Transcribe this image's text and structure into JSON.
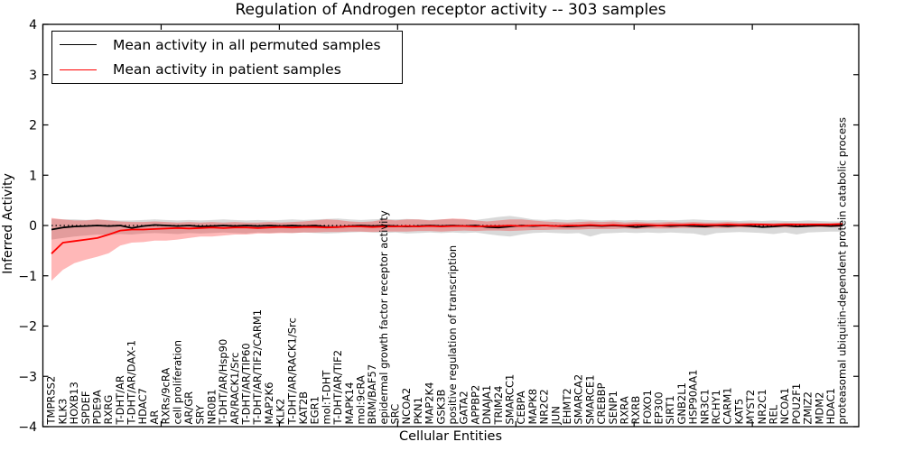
{
  "chart_data": {
    "type": "line",
    "title": "Regulation of Androgen receptor activity -- 303 samples",
    "xlabel": "Cellular Entities",
    "ylabel": "Inferred Activity",
    "ylim": [
      -4,
      4
    ],
    "xlim": [
      0,
      69
    ],
    "y_ticks": [
      "4",
      "3",
      "2",
      "1",
      "0",
      "−1",
      "−2",
      "−3",
      "−4"
    ],
    "x_major_tick_interval": 10,
    "grid": false,
    "legend_position": "upper left",
    "reference_line": {
      "y": 0,
      "style": "dotted",
      "color": "#000000"
    },
    "categories": [
      "TMPRSS2",
      "KLK3",
      "HOXB13",
      "SPDEF",
      "PDE9A",
      "RXRG",
      "T-DHT/AR",
      "T-DHT/AR/DAX-1",
      "HDAC7",
      "AR",
      "RXRs/9cRA",
      "cell proliferation",
      "AR/GR",
      "SRY",
      "NR0B1",
      "T-DHT/AR/Hsp90",
      "AR/RACK1/Src",
      "T-DHT/AR/TIP60",
      "T-DHT/AR/TIF2/CARM1",
      "MAP2K6",
      "KLK2",
      "T-DHT/AR/RACK1/Src",
      "KAT2B",
      "EGR1",
      "mol:T-DHT",
      "T-DHT/AR/TIF2",
      "MAPK14",
      "mol:9cRA",
      "BRM/BAF57",
      "epidermal growth factor receptor activity",
      "SRC",
      "NCOA2",
      "PKN1",
      "MAP2K4",
      "GSK3B",
      "positive regulation of transcription",
      "GATA2",
      "APPBP2",
      "DNAJA1",
      "TRIM24",
      "SMARCC1",
      "CEBPA",
      "MAPK8",
      "NR2C2",
      "JUN",
      "EHMT2",
      "SMARCA2",
      "SMARCE1",
      "CREBBP",
      "SENP1",
      "RXRA",
      "RXRB",
      "FOXO1",
      "EP300",
      "SIRT1",
      "GNB2L1",
      "HSP90AA1",
      "NR3C1",
      "RCHY1",
      "CARM1",
      "KAT5",
      "MYST2",
      "NR2C1",
      "REL",
      "NCOA1",
      "POU2F1",
      "ZMIZ2",
      "MDM2",
      "HDAC1",
      "proteasomal ubiquitin-dependent protein catabolic process"
    ],
    "series": [
      {
        "name": "Mean activity in all permuted samples",
        "color": "#000000",
        "band_color": "#000000",
        "band_alpha": 0.15,
        "values": [
          -0.08,
          -0.04,
          -0.02,
          -0.01,
          0.0,
          -0.01,
          0.0,
          -0.05,
          -0.01,
          0.01,
          0.0,
          -0.01,
          0.0,
          -0.02,
          -0.01,
          0.0,
          -0.01,
          0.0,
          -0.01,
          0.0,
          -0.01,
          0.0,
          -0.01,
          0.0,
          -0.03,
          -0.03,
          -0.01,
          0.0,
          -0.01,
          0.0,
          -0.01,
          -0.02,
          -0.01,
          0.0,
          -0.01,
          0.0,
          -0.01,
          0.0,
          -0.03,
          -0.04,
          -0.02,
          0.0,
          -0.01,
          0.0,
          -0.01,
          -0.02,
          -0.01,
          0.0,
          -0.01,
          0.0,
          -0.01,
          -0.03,
          -0.01,
          0.0,
          -0.01,
          0.0,
          -0.01,
          -0.02,
          0.0,
          -0.01,
          0.0,
          -0.01,
          -0.03,
          -0.02,
          0.0,
          -0.02,
          -0.01,
          0.0,
          -0.01,
          0.0
        ],
        "band_upper": [
          0.13,
          0.12,
          0.12,
          0.11,
          0.12,
          0.11,
          0.1,
          0.1,
          0.11,
          0.12,
          0.11,
          0.1,
          0.11,
          0.1,
          0.11,
          0.12,
          0.11,
          0.1,
          0.11,
          0.1,
          0.11,
          0.12,
          0.11,
          0.12,
          0.13,
          0.14,
          0.12,
          0.11,
          0.12,
          0.13,
          0.12,
          0.13,
          0.12,
          0.11,
          0.12,
          0.13,
          0.12,
          0.11,
          0.14,
          0.17,
          0.19,
          0.16,
          0.12,
          0.11,
          0.12,
          0.11,
          0.12,
          0.11,
          0.1,
          0.11,
          0.1,
          0.11,
          0.1,
          0.11,
          0.1,
          0.11,
          0.12,
          0.11,
          0.1,
          0.1,
          0.09,
          0.1,
          0.09,
          0.1,
          0.09,
          0.09,
          0.1,
          0.09,
          0.08,
          0.08
        ],
        "band_lower": [
          -0.28,
          -0.25,
          -0.22,
          -0.2,
          -0.18,
          -0.19,
          -0.17,
          -0.18,
          -0.16,
          -0.15,
          -0.16,
          -0.17,
          -0.15,
          -0.16,
          -0.15,
          -0.14,
          -0.15,
          -0.16,
          -0.14,
          -0.15,
          -0.14,
          -0.15,
          -0.14,
          -0.15,
          -0.16,
          -0.15,
          -0.14,
          -0.13,
          -0.14,
          -0.15,
          -0.14,
          -0.16,
          -0.15,
          -0.14,
          -0.15,
          -0.14,
          -0.15,
          -0.14,
          -0.17,
          -0.2,
          -0.22,
          -0.18,
          -0.15,
          -0.14,
          -0.15,
          -0.16,
          -0.15,
          -0.22,
          -0.16,
          -0.15,
          -0.14,
          -0.15,
          -0.14,
          -0.15,
          -0.14,
          -0.15,
          -0.16,
          -0.2,
          -0.15,
          -0.14,
          -0.13,
          -0.14,
          -0.15,
          -0.17,
          -0.14,
          -0.18,
          -0.14,
          -0.13,
          -0.12,
          -0.12
        ]
      },
      {
        "name": "Mean activity in patient samples",
        "color": "#ff0000",
        "band_color": "#ff0000",
        "band_alpha": 0.28,
        "values": [
          -0.56,
          -0.34,
          -0.31,
          -0.28,
          -0.25,
          -0.18,
          -0.1,
          -0.08,
          -0.08,
          -0.07,
          -0.06,
          -0.05,
          -0.06,
          -0.05,
          -0.04,
          -0.05,
          -0.04,
          -0.04,
          -0.05,
          -0.04,
          -0.03,
          -0.04,
          -0.03,
          -0.03,
          -0.04,
          -0.03,
          -0.02,
          -0.02,
          -0.03,
          -0.02,
          -0.02,
          -0.01,
          -0.02,
          -0.01,
          -0.02,
          -0.01,
          -0.01,
          -0.02,
          -0.01,
          -0.01,
          0.0,
          -0.01,
          0.0,
          0.0,
          -0.01,
          0.0,
          0.0,
          0.01,
          0.0,
          0.01,
          0.0,
          0.01,
          0.01,
          0.0,
          0.01,
          0.01,
          0.02,
          0.01,
          0.01,
          0.02,
          0.01,
          0.02,
          0.02,
          0.01,
          0.02,
          0.02,
          0.02,
          0.02,
          0.02,
          0.03
        ],
        "band_upper": [
          0.15,
          0.12,
          0.1,
          0.1,
          0.12,
          0.1,
          0.08,
          0.07,
          0.07,
          0.08,
          0.07,
          0.06,
          0.07,
          0.06,
          0.07,
          0.06,
          0.07,
          0.06,
          0.06,
          0.07,
          0.06,
          0.07,
          0.08,
          0.1,
          0.12,
          0.11,
          0.08,
          0.07,
          0.08,
          0.12,
          0.1,
          0.12,
          0.12,
          0.1,
          0.12,
          0.14,
          0.13,
          0.1,
          0.08,
          0.1,
          0.12,
          0.12,
          0.1,
          0.08,
          0.07,
          0.06,
          0.07,
          0.08,
          0.07,
          0.08,
          0.06,
          0.07,
          0.06,
          0.06,
          0.07,
          0.06,
          0.07,
          0.06,
          0.06,
          0.07,
          0.06,
          0.06,
          0.05,
          0.05,
          0.06,
          0.05,
          0.05,
          0.05,
          0.05,
          0.05
        ],
        "band_lower": [
          -1.1,
          -0.88,
          -0.75,
          -0.68,
          -0.62,
          -0.55,
          -0.4,
          -0.34,
          -0.33,
          -0.3,
          -0.3,
          -0.28,
          -0.25,
          -0.22,
          -0.22,
          -0.2,
          -0.18,
          -0.18,
          -0.16,
          -0.16,
          -0.15,
          -0.15,
          -0.14,
          -0.14,
          -0.13,
          -0.13,
          -0.12,
          -0.12,
          -0.13,
          -0.12,
          -0.12,
          -0.12,
          -0.11,
          -0.11,
          -0.12,
          -0.11,
          -0.1,
          -0.11,
          -0.1,
          -0.1,
          -0.11,
          -0.1,
          -0.09,
          -0.09,
          -0.08,
          -0.08,
          -0.08,
          -0.07,
          -0.07,
          -0.07,
          -0.06,
          -0.07,
          -0.06,
          -0.06,
          -0.06,
          -0.05,
          -0.05,
          -0.05,
          -0.05,
          -0.05,
          -0.04,
          -0.04,
          -0.04,
          -0.04,
          -0.04,
          -0.04,
          -0.03,
          -0.03,
          -0.03,
          -0.03
        ]
      }
    ]
  }
}
